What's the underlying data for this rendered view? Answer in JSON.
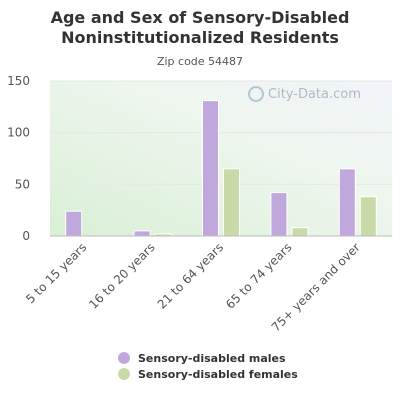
{
  "chart_data": {
    "type": "bar",
    "title": "Age and Sex of Sensory-Disabled Noninstitutionalized Residents",
    "subtitle": "Zip code 54487",
    "categories": [
      "5 to 15 years",
      "16 to 20 years",
      "21 to 64 years",
      "65 to 74 years",
      "75+ years and over"
    ],
    "series": [
      {
        "name": "Sensory-disabled males",
        "values": [
          24,
          5,
          131,
          42,
          65
        ],
        "color": "#c0a8dc"
      },
      {
        "name": "Sensory-disabled females",
        "values": [
          0,
          2,
          65,
          8,
          38
        ],
        "color": "#c8daa8"
      }
    ],
    "yticks": [
      0,
      50,
      100,
      150
    ],
    "ylim": [
      0,
      150
    ],
    "grid": true,
    "legend_position": "bottom"
  },
  "watermark": {
    "text": "City-Data.com"
  }
}
